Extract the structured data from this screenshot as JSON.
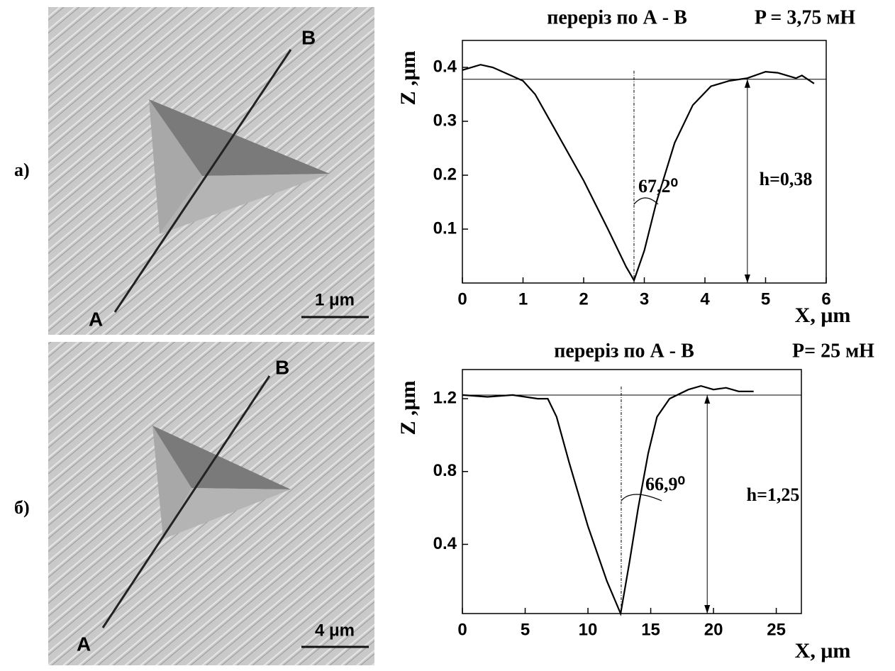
{
  "figure": {
    "panels": [
      {
        "label": "а)",
        "image_labels": {
          "start": "A",
          "end": "B",
          "scale": "1 μm"
        }
      },
      {
        "label": "б)",
        "image_labels": {
          "start": "A",
          "end": "B",
          "scale": "4 μm"
        }
      }
    ]
  },
  "chart_data": [
    {
      "type": "line",
      "title": "переріз по А - В",
      "load": "P = 3,75 мН",
      "x_label": "X, μm",
      "y_label": "Z ,μm",
      "angle_label": "67,2⁰",
      "depth_label": "h=0,38",
      "xlim": [
        0,
        6
      ],
      "xticks": [
        0,
        1,
        2,
        3,
        4,
        5,
        6
      ],
      "ylim": [
        0,
        0.45
      ],
      "yticks": [
        0.1,
        0.2,
        0.3,
        0.4
      ],
      "level": 0.378,
      "min_x": 2.83,
      "depth_x": 4.7,
      "color": "#000000",
      "x": [
        0,
        0.3,
        0.5,
        0.8,
        1.0,
        1.2,
        1.5,
        2.0,
        2.4,
        2.7,
        2.83,
        3.0,
        3.2,
        3.5,
        3.8,
        4.1,
        4.4,
        4.7,
        5.0,
        5.2,
        5.5,
        5.6,
        5.8
      ],
      "values": [
        0.395,
        0.405,
        0.4,
        0.385,
        0.375,
        0.35,
        0.29,
        0.19,
        0.1,
        0.03,
        0.005,
        0.06,
        0.15,
        0.26,
        0.33,
        0.365,
        0.375,
        0.38,
        0.392,
        0.39,
        0.38,
        0.385,
        0.37
      ]
    },
    {
      "type": "line",
      "title": "переріз по А - В",
      "load": "P= 25 мН",
      "x_label": "X, μm",
      "y_label": "Z ,μm",
      "angle_label": "66,9⁰",
      "depth_label": "h=1,25",
      "xlim": [
        0,
        27
      ],
      "xticks": [
        0,
        5,
        10,
        15,
        20,
        25
      ],
      "ylim": [
        0.02,
        1.36
      ],
      "yticks": [
        0.4,
        0.8,
        1.2
      ],
      "level": 1.22,
      "min_x": 12.65,
      "depth_x": 19.5,
      "color": "#000000",
      "x": [
        0,
        2,
        4,
        6,
        6.8,
        7.5,
        8.5,
        10,
        11.5,
        12.6,
        13.3,
        14,
        14.8,
        15.5,
        16.5,
        18,
        19,
        20,
        21,
        22,
        23.2
      ],
      "values": [
        1.22,
        1.21,
        1.22,
        1.2,
        1.2,
        1.1,
        0.85,
        0.5,
        0.2,
        0.02,
        0.3,
        0.6,
        0.9,
        1.1,
        1.2,
        1.25,
        1.27,
        1.25,
        1.26,
        1.24,
        1.24
      ]
    }
  ]
}
